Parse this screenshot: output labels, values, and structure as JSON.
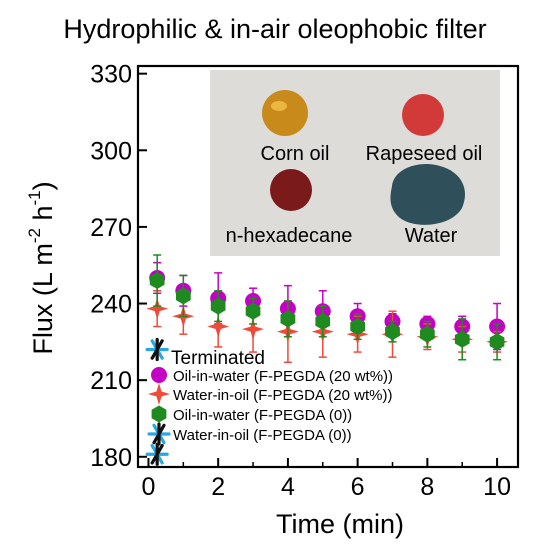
{
  "chart_data": {
    "type": "scatter",
    "title": "Hydrophilic & in-air oleophobic filter",
    "xlabel": "Time (min)",
    "ylabel": "Flux (L m",
    "ylabel_sup1": "-2",
    "ylabel_mid": " h",
    "ylabel_sup2": "-1",
    "ylabel_end": ")",
    "xlim": [
      -0.3,
      10.6
    ],
    "ylim": [
      176,
      333
    ],
    "xticks": [
      0,
      2,
      4,
      6,
      8,
      10
    ],
    "yticks": [
      180,
      210,
      240,
      270,
      300,
      330
    ],
    "grid": false,
    "legend_title": "Terminated",
    "legend_position": "bottom-left",
    "series": [
      {
        "name": "Oil-in-water (F-PEGDA (20 wt%))",
        "marker": "circle",
        "color": "#c400c4",
        "x": [
          0.25,
          1,
          2,
          3,
          4,
          5,
          6,
          7,
          8,
          9,
          10
        ],
        "y": [
          250,
          245,
          242,
          241,
          238,
          237,
          235,
          233,
          232,
          231,
          231
        ],
        "err": [
          6,
          6,
          10,
          5,
          9,
          8,
          5,
          3,
          3,
          4,
          9
        ]
      },
      {
        "name": "Water-in-oil (F-PEGDA (20 wt%))",
        "marker": "star4",
        "color": "#f04a3a",
        "x": [
          0.25,
          1,
          2,
          3,
          4,
          5,
          6,
          7,
          8,
          9,
          10
        ],
        "y": [
          238,
          235,
          231,
          230,
          229,
          229,
          228,
          228,
          227,
          226,
          225
        ],
        "err": [
          7,
          7,
          8,
          9,
          12,
          10,
          7,
          9,
          5,
          5,
          4
        ]
      },
      {
        "name": "Oil-in-water (F-PEGDA (0))",
        "marker": "hexagon",
        "color": "#1f8a1f",
        "x": [
          0.25,
          1,
          2,
          3,
          4,
          5,
          6,
          7,
          8,
          9,
          10
        ],
        "y": [
          249,
          243,
          239,
          237,
          234,
          233,
          231,
          229,
          228,
          226,
          225
        ],
        "err": [
          10,
          8,
          6,
          5,
          7,
          6,
          5,
          4,
          5,
          8,
          7
        ]
      },
      {
        "name": "Water-in-oil (F-PEGDA (0))",
        "marker": "asterisk",
        "color": "#29a7e0",
        "x": [
          0.25
        ],
        "y": [
          181
        ],
        "err": [
          0
        ]
      }
    ],
    "terminated_marker": {
      "x": 0.25,
      "y": 222,
      "color": "#29a7e0"
    },
    "inset": {
      "labels": [
        "Corn oil",
        "Rapeseed oil",
        "n-hexadecane",
        "Water"
      ],
      "colors": {
        "background": "#dedcd8",
        "corn_oil": "#c98a1c",
        "rapeseed_oil": "#d23a3a",
        "n_hexadecane": "#7a1a1a",
        "water": "#2f4f5a"
      }
    }
  }
}
